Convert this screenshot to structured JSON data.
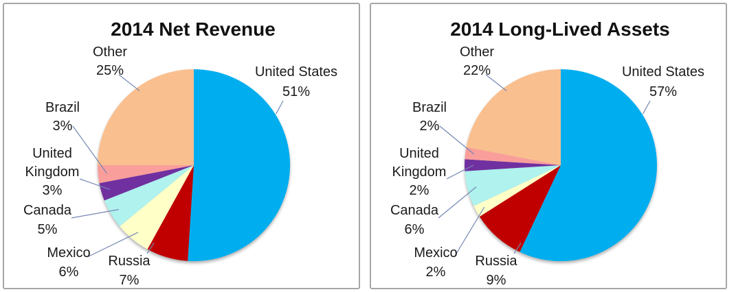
{
  "page": {
    "background": "#ffffff",
    "panel_border_color": "#a6a6a6",
    "text_color": "#1a1a1a",
    "leader_line_color": "#7486b4"
  },
  "chart_data": [
    {
      "type": "pie",
      "title": "2014 Net Revenue",
      "direction": "clockwise",
      "start_angle_deg": 0,
      "labels_outside": true,
      "legend": "none",
      "value_suffix": "%",
      "slices": [
        {
          "label": "United States",
          "value": 51,
          "color": "#00aeef"
        },
        {
          "label": "Russia",
          "value": 7,
          "color": "#c00000"
        },
        {
          "label": "Mexico",
          "value": 6,
          "color": "#ffffc8"
        },
        {
          "label": "Canada",
          "value": 5,
          "color": "#aff2ee"
        },
        {
          "label": "United Kingdom",
          "value": 3,
          "color": "#7030a0"
        },
        {
          "label": "Brazil",
          "value": 3,
          "color": "#fa9e9b"
        },
        {
          "label": "Other",
          "value": 25,
          "color": "#fabf8f"
        }
      ]
    },
    {
      "type": "pie",
      "title": "2014 Long-Lived Assets",
      "direction": "clockwise",
      "start_angle_deg": 0,
      "labels_outside": true,
      "legend": "none",
      "value_suffix": "%",
      "slices": [
        {
          "label": "United States",
          "value": 57,
          "color": "#00aeef"
        },
        {
          "label": "Russia",
          "value": 9,
          "color": "#c00000"
        },
        {
          "label": "Mexico",
          "value": 2,
          "color": "#ffffc8"
        },
        {
          "label": "Canada",
          "value": 6,
          "color": "#aff2ee"
        },
        {
          "label": "United Kingdom",
          "value": 2,
          "color": "#7030a0"
        },
        {
          "label": "Brazil",
          "value": 2,
          "color": "#fa9e9b"
        },
        {
          "label": "Other",
          "value": 22,
          "color": "#fabf8f"
        }
      ]
    }
  ]
}
